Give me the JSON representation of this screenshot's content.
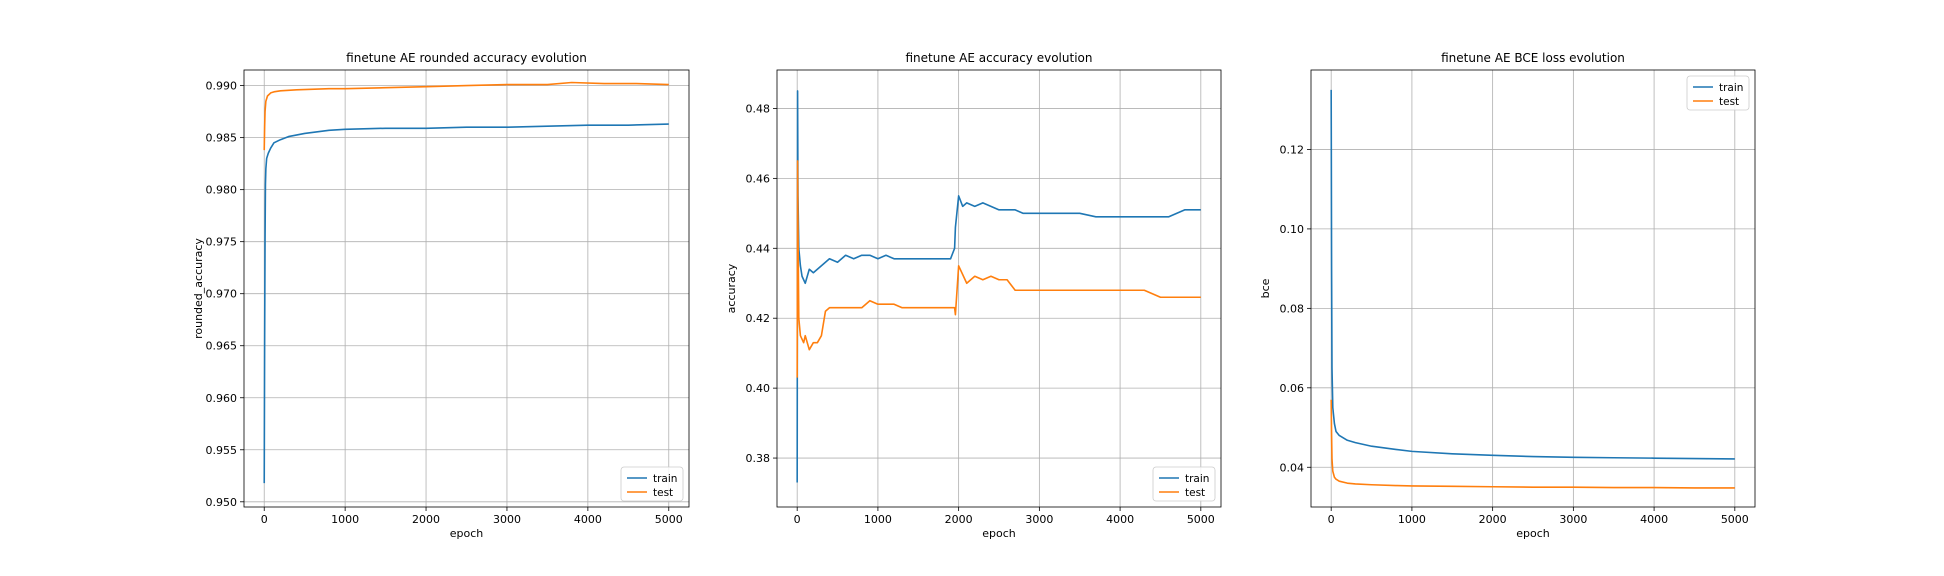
{
  "chart_data": [
    {
      "type": "line",
      "title": "finetune AE rounded accuracy evolution",
      "xlabel": "epoch",
      "ylabel": "rounded_accuracy",
      "xlim": [
        -250,
        5250
      ],
      "ylim": [
        0.9495,
        0.9915
      ],
      "xticks": [
        0,
        1000,
        2000,
        3000,
        4000,
        5000
      ],
      "xtick_labels": [
        "0",
        "1000",
        "2000",
        "3000",
        "4000",
        "5000"
      ],
      "yticks": [
        0.95,
        0.955,
        0.96,
        0.965,
        0.97,
        0.975,
        0.98,
        0.985,
        0.99
      ],
      "ytick_labels": [
        "0.950",
        "0.955",
        "0.960",
        "0.965",
        "0.970",
        "0.975",
        "0.980",
        "0.985",
        "0.990"
      ],
      "grid": true,
      "legend_position": "lower-right",
      "series": [
        {
          "name": "train",
          "color": "#1f77b4",
          "x": [
            0,
            5,
            10,
            15,
            20,
            30,
            50,
            80,
            120,
            200,
            300,
            500,
            800,
            1000,
            1500,
            2000,
            2500,
            3000,
            3500,
            4000,
            4500,
            5000
          ],
          "y": [
            0.9518,
            0.965,
            0.975,
            0.9805,
            0.982,
            0.983,
            0.9835,
            0.984,
            0.9845,
            0.9848,
            0.9851,
            0.9854,
            0.9857,
            0.9858,
            0.9859,
            0.9859,
            0.986,
            0.986,
            0.9861,
            0.9862,
            0.9862,
            0.9863
          ]
        },
        {
          "name": "test",
          "color": "#ff7f0e",
          "x": [
            0,
            5,
            10,
            20,
            40,
            80,
            120,
            200,
            400,
            800,
            1000,
            1500,
            2000,
            2500,
            3000,
            3500,
            3800,
            4200,
            4600,
            5000
          ],
          "y": [
            0.9838,
            0.986,
            0.9875,
            0.9885,
            0.989,
            0.9893,
            0.9894,
            0.9895,
            0.9896,
            0.9897,
            0.9897,
            0.9898,
            0.9899,
            0.99,
            0.9901,
            0.9901,
            0.9903,
            0.9902,
            0.9902,
            0.9901
          ]
        }
      ]
    },
    {
      "type": "line",
      "title": "finetune AE accuracy evolution",
      "xlabel": "epoch",
      "ylabel": "accuracy",
      "xlim": [
        -250,
        5250
      ],
      "ylim": [
        0.366,
        0.491
      ],
      "xticks": [
        0,
        1000,
        2000,
        3000,
        4000,
        5000
      ],
      "xtick_labels": [
        "0",
        "1000",
        "2000",
        "3000",
        "4000",
        "5000"
      ],
      "yticks": [
        0.38,
        0.4,
        0.42,
        0.44,
        0.46,
        0.48
      ],
      "ytick_labels": [
        "0.38",
        "0.40",
        "0.42",
        "0.44",
        "0.46",
        "0.48"
      ],
      "grid": true,
      "legend_position": "lower-right",
      "series": [
        {
          "name": "train",
          "color": "#1f77b4",
          "x": [
            0,
            5,
            10,
            20,
            40,
            60,
            100,
            150,
            200,
            300,
            400,
            500,
            600,
            700,
            800,
            900,
            1000,
            1100,
            1200,
            1300,
            1400,
            1500,
            1600,
            1700,
            1800,
            1900,
            1950,
            1960,
            2000,
            2050,
            2100,
            2200,
            2300,
            2400,
            2500,
            2600,
            2700,
            2800,
            3000,
            3500,
            3700,
            4000,
            4400,
            4500,
            4600,
            4700,
            4800,
            5000
          ],
          "y": [
            0.373,
            0.485,
            0.455,
            0.44,
            0.435,
            0.432,
            0.43,
            0.434,
            0.433,
            0.435,
            0.437,
            0.436,
            0.438,
            0.437,
            0.438,
            0.438,
            0.437,
            0.438,
            0.437,
            0.437,
            0.437,
            0.437,
            0.437,
            0.437,
            0.437,
            0.437,
            0.44,
            0.446,
            0.455,
            0.452,
            0.453,
            0.452,
            0.453,
            0.452,
            0.451,
            0.451,
            0.451,
            0.45,
            0.45,
            0.45,
            0.449,
            0.449,
            0.449,
            0.449,
            0.449,
            0.45,
            0.451,
            0.451
          ]
        },
        {
          "name": "test",
          "color": "#ff7f0e",
          "x": [
            0,
            5,
            10,
            20,
            40,
            60,
            80,
            100,
            150,
            200,
            250,
            300,
            350,
            400,
            500,
            600,
            800,
            900,
            1000,
            1100,
            1200,
            1300,
            1500,
            1700,
            1900,
            1950,
            1960,
            2000,
            2100,
            2200,
            2300,
            2400,
            2500,
            2600,
            2700,
            3000,
            3500,
            4000,
            4300,
            4400,
            4500,
            4600,
            5000
          ],
          "y": [
            0.403,
            0.465,
            0.445,
            0.42,
            0.415,
            0.414,
            0.413,
            0.415,
            0.411,
            0.413,
            0.413,
            0.415,
            0.422,
            0.423,
            0.423,
            0.423,
            0.423,
            0.425,
            0.424,
            0.424,
            0.424,
            0.423,
            0.423,
            0.423,
            0.423,
            0.423,
            0.421,
            0.435,
            0.43,
            0.432,
            0.431,
            0.432,
            0.431,
            0.431,
            0.428,
            0.428,
            0.428,
            0.428,
            0.428,
            0.427,
            0.426,
            0.426,
            0.426
          ]
        }
      ]
    },
    {
      "type": "line",
      "title": "finetune AE BCE loss evolution",
      "xlabel": "epoch",
      "ylabel": "bce",
      "xlim": [
        -250,
        5250
      ],
      "ylim": [
        0.03,
        0.14
      ],
      "xticks": [
        0,
        1000,
        2000,
        3000,
        4000,
        5000
      ],
      "xtick_labels": [
        "0",
        "1000",
        "2000",
        "3000",
        "4000",
        "5000"
      ],
      "yticks": [
        0.04,
        0.06,
        0.08,
        0.1,
        0.12
      ],
      "ytick_labels": [
        "0.04",
        "0.06",
        "0.08",
        "0.10",
        "0.12"
      ],
      "grid": true,
      "legend_position": "upper-right",
      "series": [
        {
          "name": "train",
          "color": "#1f77b4",
          "x": [
            0,
            5,
            10,
            20,
            40,
            60,
            100,
            200,
            300,
            500,
            800,
            1000,
            1500,
            2000,
            2500,
            3000,
            3500,
            4000,
            4500,
            5000
          ],
          "y": [
            0.135,
            0.09,
            0.065,
            0.055,
            0.051,
            0.049,
            0.048,
            0.0468,
            0.0462,
            0.0453,
            0.0445,
            0.044,
            0.0434,
            0.043,
            0.0427,
            0.0425,
            0.0424,
            0.0423,
            0.0422,
            0.0421
          ]
        },
        {
          "name": "test",
          "color": "#ff7f0e",
          "x": [
            0,
            5,
            10,
            20,
            40,
            60,
            100,
            200,
            300,
            500,
            800,
            1000,
            1500,
            2000,
            2500,
            3000,
            3500,
            4000,
            4500,
            5000
          ],
          "y": [
            0.057,
            0.048,
            0.042,
            0.039,
            0.0375,
            0.037,
            0.0365,
            0.036,
            0.0358,
            0.0356,
            0.0354,
            0.0353,
            0.0352,
            0.0351,
            0.035,
            0.035,
            0.0349,
            0.0349,
            0.0348,
            0.0348
          ]
        }
      ]
    }
  ]
}
